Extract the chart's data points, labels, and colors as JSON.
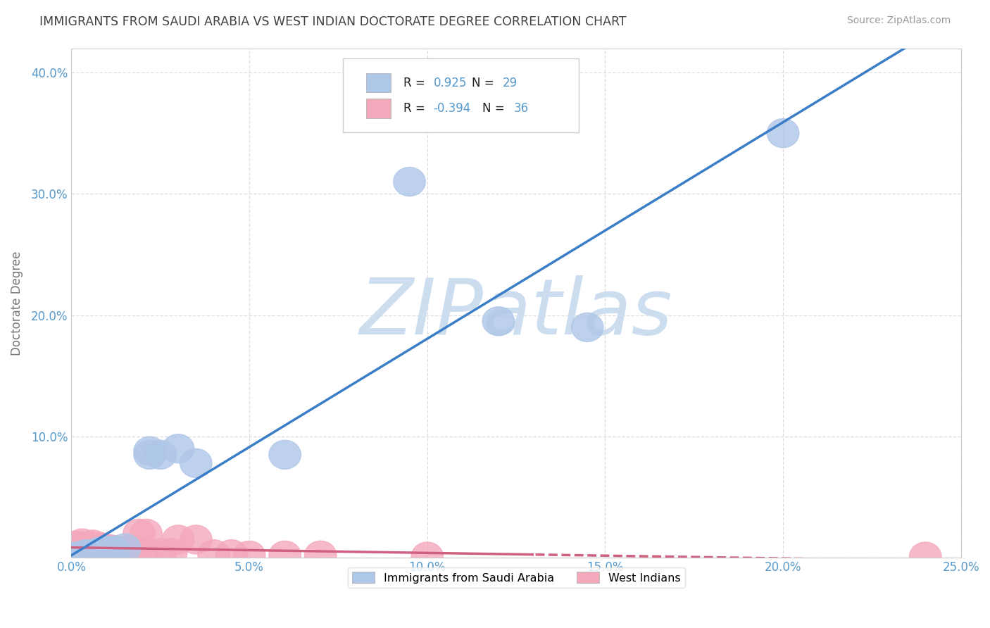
{
  "title": "IMMIGRANTS FROM SAUDI ARABIA VS WEST INDIAN DOCTORATE DEGREE CORRELATION CHART",
  "source": "Source: ZipAtlas.com",
  "ylabel": "Doctorate Degree",
  "xlim": [
    0.0,
    0.25
  ],
  "ylim": [
    0.0,
    0.42
  ],
  "xtick_vals": [
    0.0,
    0.05,
    0.1,
    0.15,
    0.2,
    0.25
  ],
  "ytick_vals": [
    0.0,
    0.1,
    0.2,
    0.3,
    0.4
  ],
  "blue_R": 0.925,
  "blue_N": 29,
  "pink_R": -0.394,
  "pink_N": 36,
  "blue_scatter_color": "#aec6e8",
  "pink_scatter_color": "#f4a8bc",
  "blue_line_color": "#3b7ec8",
  "pink_line_color": "#d06080",
  "watermark_color": "#ccddf0",
  "grid_color": "#dddddd",
  "title_color": "#404040",
  "axis_tick_color": "#5599cc",
  "source_color": "#999999",
  "legend_label_blue": "Immigrants from Saudi Arabia",
  "legend_label_pink": "West Indians",
  "blue_points_x": [
    0.001,
    0.002,
    0.003,
    0.002,
    0.004,
    0.005,
    0.003,
    0.006,
    0.007,
    0.005,
    0.008,
    0.01,
    0.009,
    0.012,
    0.015,
    0.004,
    0.006,
    0.008,
    0.01,
    0.022,
    0.035,
    0.06,
    0.03,
    0.025,
    0.095,
    0.12,
    0.145,
    0.2,
    0.022
  ],
  "blue_points_y": [
    0.001,
    0.001,
    0.002,
    0.001,
    0.002,
    0.003,
    0.001,
    0.003,
    0.004,
    0.002,
    0.005,
    0.005,
    0.004,
    0.006,
    0.008,
    0.003,
    0.003,
    0.004,
    0.006,
    0.085,
    0.078,
    0.085,
    0.09,
    0.085,
    0.31,
    0.195,
    0.19,
    0.35,
    0.088
  ],
  "pink_points_x": [
    0.001,
    0.003,
    0.005,
    0.002,
    0.004,
    0.006,
    0.007,
    0.008,
    0.009,
    0.01,
    0.012,
    0.015,
    0.018,
    0.02,
    0.025,
    0.028,
    0.03,
    0.035,
    0.04,
    0.045,
    0.05,
    0.06,
    0.07,
    0.005,
    0.008,
    0.011,
    0.013,
    0.016,
    0.003,
    0.006,
    0.009,
    0.014,
    0.019,
    0.021,
    0.1,
    0.24
  ],
  "pink_points_y": [
    0.01,
    0.008,
    0.009,
    0.01,
    0.008,
    0.007,
    0.008,
    0.006,
    0.007,
    0.006,
    0.005,
    0.005,
    0.005,
    0.004,
    0.004,
    0.004,
    0.015,
    0.015,
    0.003,
    0.003,
    0.002,
    0.002,
    0.002,
    0.01,
    0.009,
    0.007,
    0.006,
    0.005,
    0.012,
    0.011,
    0.008,
    0.006,
    0.02,
    0.02,
    0.001,
    0.001
  ]
}
